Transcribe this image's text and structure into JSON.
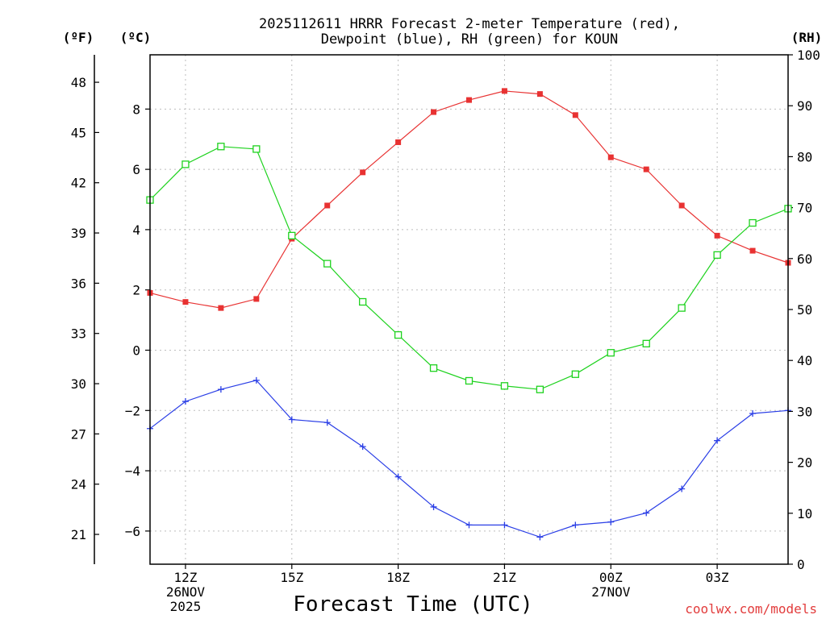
{
  "chart_data": {
    "type": "line",
    "title": "2025112611 HRRR Forecast 2-meter Temperature (red),",
    "subtitle": "Dewpoint (blue), RH (green) for KOUN",
    "xlabel": "Forecast Time (UTC)",
    "credit": "coolwx.com/models",
    "units": {
      "fahrenheit": "(ºF)",
      "celsius": "(ºC)",
      "rh": "(RH)"
    },
    "x": [
      11,
      12,
      13,
      14,
      15,
      16,
      17,
      18,
      19,
      20,
      21,
      22,
      23,
      24,
      25,
      26,
      27,
      28,
      29
    ],
    "x_ticks": [
      {
        "x": 12,
        "lines": [
          "12Z",
          "26NOV",
          "2025"
        ]
      },
      {
        "x": 15,
        "lines": [
          "15Z"
        ]
      },
      {
        "x": 18,
        "lines": [
          "18Z"
        ]
      },
      {
        "x": 21,
        "lines": [
          "21Z"
        ]
      },
      {
        "x": 24,
        "lines": [
          "00Z",
          "27NOV"
        ]
      },
      {
        "x": 27,
        "lines": [
          "03Z"
        ]
      }
    ],
    "xlim": [
      11,
      29
    ],
    "celsius_axis": {
      "ylim": [
        -7.1,
        9.8
      ],
      "ticks": [
        "8",
        "6",
        "4",
        "2",
        "0",
        "−2",
        "−4",
        "−6"
      ],
      "tick_values": [
        8,
        6,
        4,
        2,
        0,
        -2,
        -4,
        -6
      ]
    },
    "fahrenheit_axis": {
      "ticks": [
        "48",
        "45",
        "42",
        "39",
        "36",
        "33",
        "30",
        "27",
        "24",
        "21"
      ],
      "tick_values": [
        48,
        45,
        42,
        39,
        36,
        33,
        30,
        27,
        24,
        21
      ]
    },
    "rh_axis": {
      "ylim": [
        0,
        100
      ],
      "ticks": [
        "100",
        "90",
        "80",
        "70",
        "60",
        "50",
        "40",
        "30",
        "20",
        "10",
        "0"
      ],
      "tick_values": [
        100,
        90,
        80,
        70,
        60,
        50,
        40,
        30,
        20,
        10,
        0
      ]
    },
    "series": [
      {
        "name": "Temperature",
        "axis": "celsius",
        "color": "#e83232",
        "marker": "filled-square",
        "values": [
          1.9,
          1.6,
          1.4,
          1.7,
          3.7,
          4.8,
          5.9,
          6.9,
          7.9,
          8.3,
          8.6,
          8.5,
          7.8,
          6.4,
          6.0,
          4.8,
          3.8,
          3.3,
          2.9
        ]
      },
      {
        "name": "Dewpoint",
        "axis": "celsius",
        "color": "#2a3ee6",
        "marker": "plus",
        "values": [
          -2.6,
          -1.7,
          -1.3,
          -1.0,
          -2.3,
          -2.4,
          -3.2,
          -4.2,
          -5.2,
          -5.8,
          -5.8,
          -6.2,
          -5.8,
          -5.7,
          -5.4,
          -4.6,
          -3.0,
          -2.1,
          -2.0
        ]
      },
      {
        "name": "RH",
        "axis": "rh",
        "color": "#1ed21e",
        "marker": "open-square",
        "values": [
          71.5,
          78.5,
          82,
          81.5,
          64.5,
          59,
          51.5,
          45,
          38.5,
          36,
          35,
          34.3,
          37.3,
          41.5,
          43.3,
          50.3,
          60.7,
          67,
          69.8
        ]
      }
    ]
  }
}
